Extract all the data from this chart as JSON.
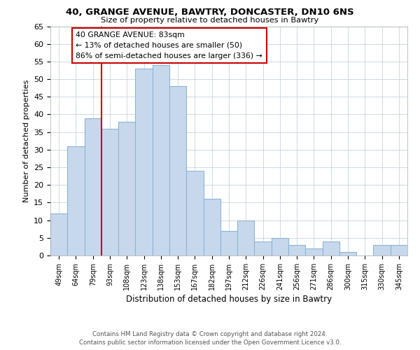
{
  "title1": "40, GRANGE AVENUE, BAWTRY, DONCASTER, DN10 6NS",
  "title2": "Size of property relative to detached houses in Bawtry",
  "xlabel": "Distribution of detached houses by size in Bawtry",
  "ylabel": "Number of detached properties",
  "bar_labels": [
    "49sqm",
    "64sqm",
    "79sqm",
    "93sqm",
    "108sqm",
    "123sqm",
    "138sqm",
    "153sqm",
    "167sqm",
    "182sqm",
    "197sqm",
    "212sqm",
    "226sqm",
    "241sqm",
    "256sqm",
    "271sqm",
    "286sqm",
    "300sqm",
    "315sqm",
    "330sqm",
    "345sqm"
  ],
  "bar_values": [
    12,
    31,
    39,
    36,
    38,
    53,
    54,
    48,
    24,
    16,
    7,
    10,
    4,
    5,
    3,
    2,
    4,
    1,
    0,
    3,
    3
  ],
  "bar_color": "#c8d8ec",
  "bar_edge_color": "#8ab4d4",
  "ylim": [
    0,
    65
  ],
  "yticks": [
    0,
    5,
    10,
    15,
    20,
    25,
    30,
    35,
    40,
    45,
    50,
    55,
    60,
    65
  ],
  "red_line_index": 2,
  "annotation_title": "40 GRANGE AVENUE: 83sqm",
  "annotation_line1": "← 13% of detached houses are smaller (50)",
  "annotation_line2": "86% of semi-detached houses are larger (336) →",
  "annotation_box_color": "#ffffff",
  "annotation_box_edge": "#cc0000",
  "red_line_color": "#cc0000",
  "footer1": "Contains HM Land Registry data © Crown copyright and database right 2024.",
  "footer2": "Contains public sector information licensed under the Open Government Licence v3.0.",
  "background_color": "#ffffff",
  "grid_color": "#c8d4e0"
}
